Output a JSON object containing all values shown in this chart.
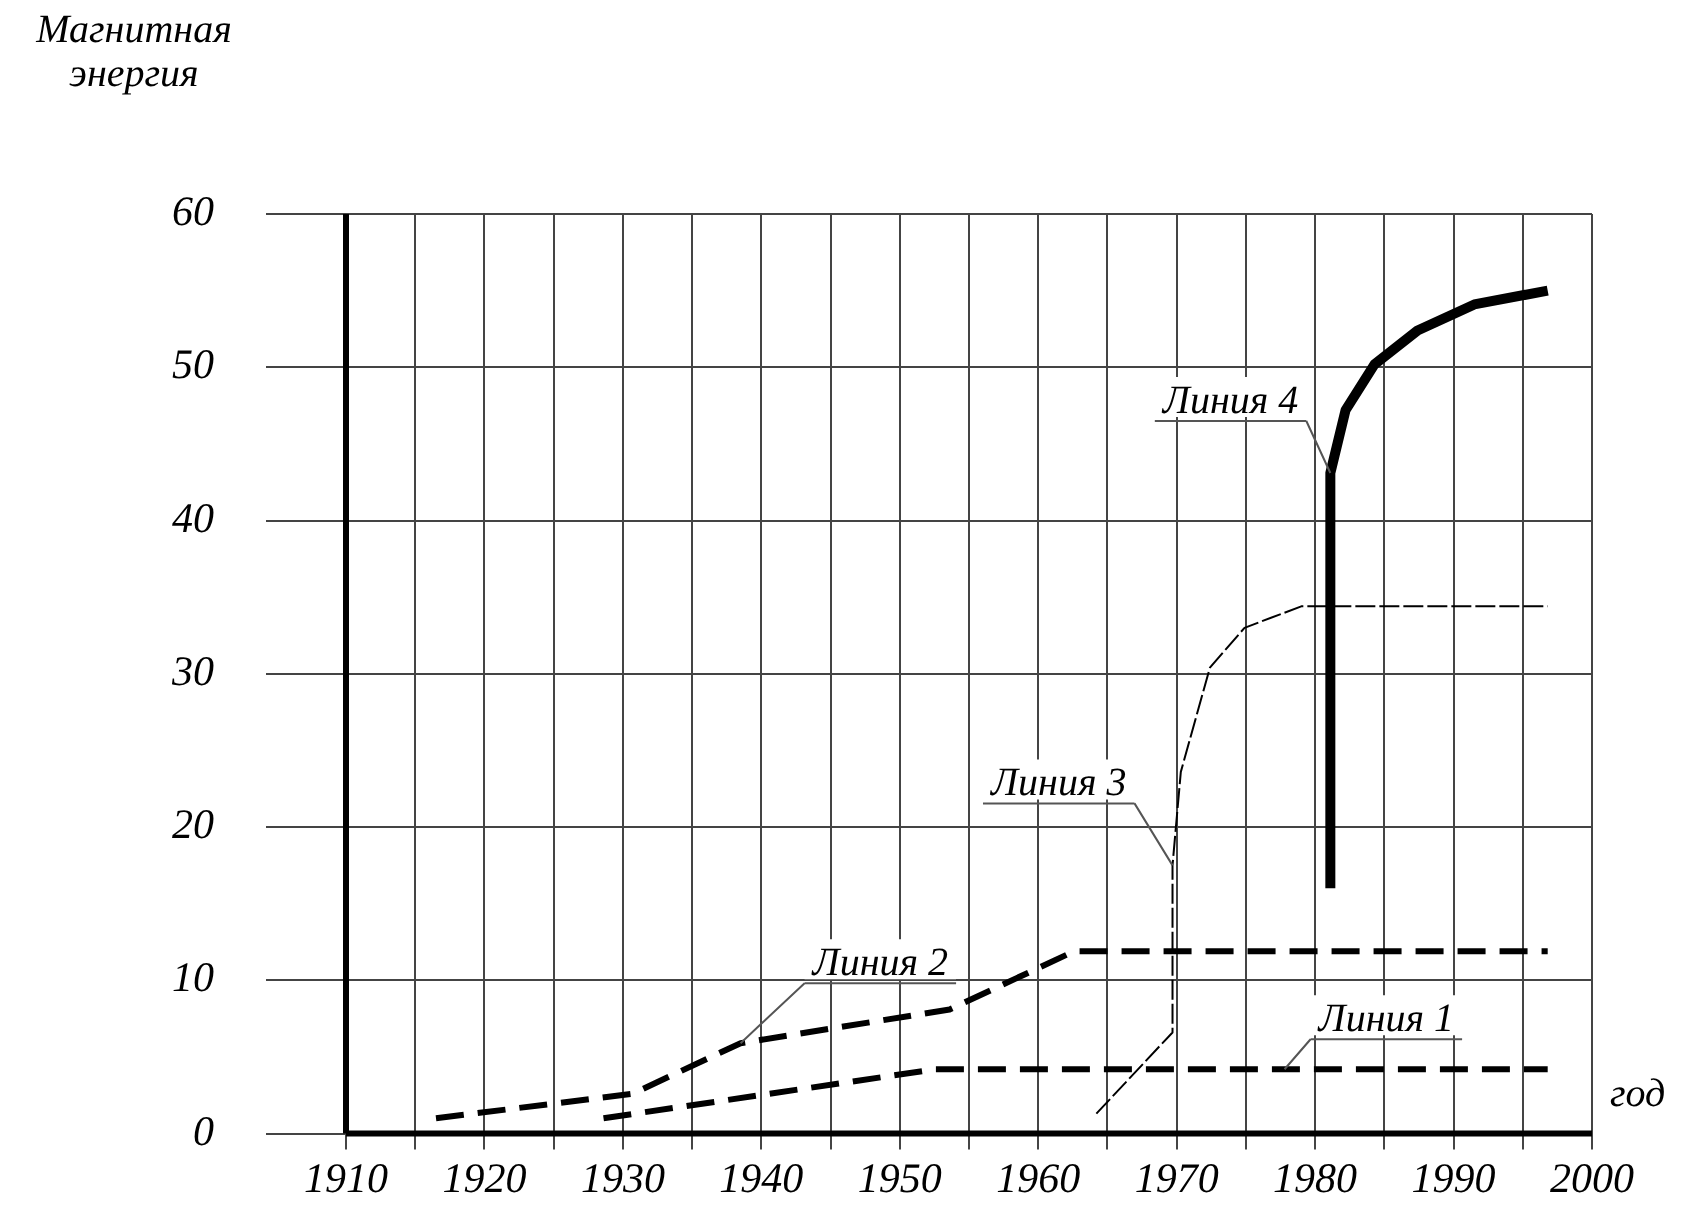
{
  "chart_data": {
    "type": "line",
    "xlabel": "год",
    "ylabel": "Магнитная энергия",
    "xlim": [
      1910,
      2000
    ],
    "xticks": [
      1910,
      {
        "value": 1915,
        "label": null
      },
      1920,
      {
        "value": 1925,
        "label": null
      },
      1930,
      {
        "value": 1935,
        "label": null
      },
      1940,
      {
        "value": 1945,
        "label": null
      },
      1950,
      {
        "value": 1955,
        "label": null
      },
      1960,
      {
        "value": 1965,
        "label": null
      },
      1970,
      {
        "value": 1975,
        "label": null
      },
      1980,
      {
        "value": 1985,
        "label": null
      },
      1990,
      {
        "value": 1995,
        "label": null
      },
      2000
    ],
    "ylim": [
      0,
      60
    ],
    "yticks": [
      0,
      10,
      20,
      30,
      40,
      50,
      60
    ],
    "grid": true,
    "legend": false,
    "marker": "none",
    "series": [
      {
        "name": "Линия 1",
        "color": "#000000",
        "line_style": "dashed",
        "x": [
          1928.6,
          1952.6,
          1996.8
        ],
        "values": [
          1.0,
          4.2,
          4.2
        ]
      },
      {
        "name": "Линия 2",
        "color": "#000000",
        "line_style": "dashed",
        "x": [
          1916.5,
          1930.7,
          1938.5,
          1953.6,
          1962.6,
          1996.8
        ],
        "values": [
          1.0,
          2.6,
          5.9,
          8.1,
          11.9,
          11.9
        ]
      },
      {
        "name": "Линия 3",
        "color": "#000000",
        "line_style": "dashed",
        "x": [
          1964.2,
          1969.7,
          1969.7,
          1970.3,
          1972.4,
          1974.9,
          1979.0,
          1996.8
        ],
        "values": [
          1.3,
          6.6,
          17.5,
          23.6,
          30.4,
          33.0,
          34.4,
          34.4
        ]
      },
      {
        "name": "Линия 4",
        "color": "#000000",
        "line_style": "solid",
        "x": [
          1981.1,
          1981.1,
          1982.2,
          1984.3,
          1987.4,
          1991.5,
          1996.8
        ],
        "values": [
          16.0,
          43.1,
          47.2,
          50.2,
          52.4,
          54.1,
          55.0
        ]
      }
    ]
  }
}
